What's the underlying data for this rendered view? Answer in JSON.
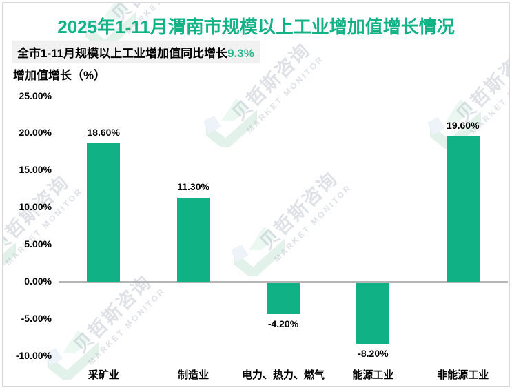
{
  "header": {
    "title": "2025年1-11月渭南市规模以上工业增加值增长情况",
    "subtitle_text": "全市1-11月规模以上工业增加值同比增长",
    "subtitle_highlight": "9.3%",
    "axis_label": "增加值增长（%）"
  },
  "watermark": {
    "cn": "贝哲斯咨询",
    "en": "MARKET MONITOR"
  },
  "colors": {
    "title_green": "#12b286",
    "highlight_green": "#2cb68b",
    "bar_green": "#10b184",
    "zero_line": "#b5b5b5",
    "frame_border": "#d8d8d8",
    "subtitle_bg": "#f1f1f1"
  },
  "chart_data": {
    "type": "bar",
    "title": "2025年1-11月渭南市规模以上工业增加值增长情况",
    "subtitle": "全市1-11月规模以上工业增加值同比增长9.3%",
    "xlabel": "",
    "ylabel": "增加值增长（%）",
    "categories": [
      "采矿业",
      "制造业",
      "电力、热力、燃气",
      "能源工业",
      "非能源工业"
    ],
    "values": [
      18.6,
      11.3,
      -4.2,
      -8.2,
      19.6
    ],
    "value_labels": [
      "18.60%",
      "11.30%",
      "-4.20%",
      "-8.20%",
      "19.60%"
    ],
    "y_ticks": [
      {
        "label": "25.00%",
        "value": 25
      },
      {
        "label": "20.00%",
        "value": 20
      },
      {
        "label": "15.00%",
        "value": 15
      },
      {
        "label": "10.00%",
        "value": 10
      },
      {
        "label": "5.00%",
        "value": 5
      },
      {
        "label": "0.00%",
        "value": 0
      },
      {
        "label": "-5.00%",
        "value": -5
      },
      {
        "label": "-10.00%",
        "value": -10
      }
    ],
    "ylim": [
      -12.5,
      27.5
    ],
    "grid": false,
    "legend": false,
    "bar_color": "#10b184"
  }
}
